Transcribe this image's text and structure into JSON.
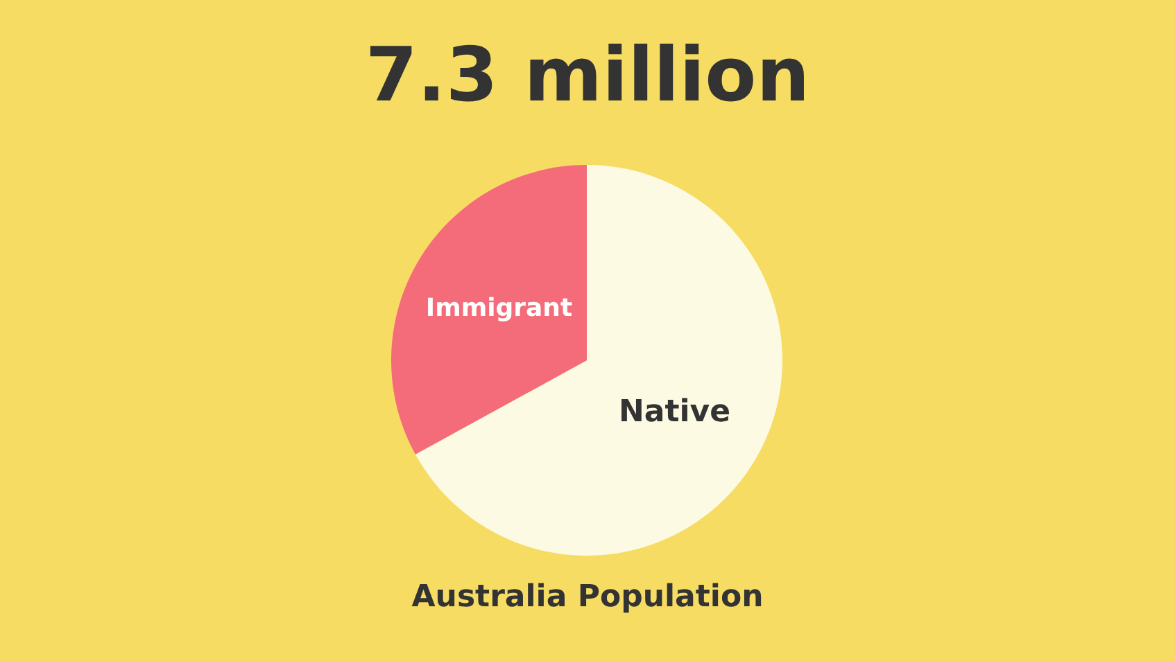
{
  "chart_data": {
    "type": "pie",
    "title": "7.3 million",
    "categories": [
      "Native",
      "Immigrant"
    ],
    "values": [
      67,
      33
    ],
    "colors": [
      "#fdfae3",
      "#f46b79"
    ],
    "annotations": [
      "Australia Population"
    ]
  }
}
